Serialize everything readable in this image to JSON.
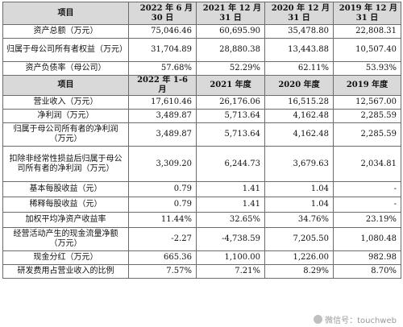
{
  "header1": {
    "item": "项目",
    "cols": [
      {
        "l1": "2022 年 6 月",
        "l2": "30 日"
      },
      {
        "l1": "2021 年 12 月",
        "l2": "31 日"
      },
      {
        "l1": "2020 年 12 月",
        "l2": "31 日"
      },
      {
        "l1": "2019 年 12 月",
        "l2": "31 日"
      }
    ]
  },
  "rows_a": [
    {
      "label": "资产总额（万元）",
      "v": [
        "75,046.46",
        "60,695.90",
        "35,478.80",
        "22,808.31"
      ]
    },
    {
      "label": "归属于母公司所有者权益（万元）",
      "v": [
        "31,704.89",
        "28,880.38",
        "13,443.88",
        "10,507.40"
      ]
    },
    {
      "label": "资产负债率（母公司）",
      "v": [
        "57.68%",
        "52.29%",
        "62.11%",
        "53.93%"
      ]
    }
  ],
  "header2": {
    "item": "项目",
    "cols": [
      "2022 年 1-6 月",
      "2021 年度",
      "2020 年度",
      "2019 年度"
    ]
  },
  "rows_b": [
    {
      "label": "营业收入（万元）",
      "v": [
        "17,610.46",
        "26,176.06",
        "16,515.28",
        "12,567.00"
      ]
    },
    {
      "label": "净利润（万元）",
      "v": [
        "3,489.87",
        "5,713.64",
        "4,162.48",
        "2,285.59"
      ]
    },
    {
      "label": "归属于母公司所有者的净利润（万元）",
      "v": [
        "3,489.87",
        "5,713.64",
        "4,162.48",
        "2,285.59"
      ]
    },
    {
      "label": "扣除非经常性损益后归属于母公司所有者的净利润（万元）",
      "v": [
        "3,309.20",
        "6,244.73",
        "3,679.63",
        "2,034.81"
      ]
    },
    {
      "label": "基本每股收益（元）",
      "v": [
        "0.79",
        "1.41",
        "1.04",
        "-"
      ]
    },
    {
      "label": "稀释每股收益（元）",
      "v": [
        "0.79",
        "1.41",
        "1.04",
        "-"
      ]
    },
    {
      "label": "加权平均净资产收益率",
      "v": [
        "11.44%",
        "32.65%",
        "34.76%",
        "23.19%"
      ]
    },
    {
      "label": "经营活动产生的现金流量净额（万元）",
      "v": [
        "-2.27",
        "-4,738.59",
        "7,205.50",
        "1,080.48"
      ]
    },
    {
      "label": "现金分红（万元）",
      "v": [
        "665.36",
        "1,100.00",
        "1,226.00",
        "982.98"
      ]
    },
    {
      "label": "研发费用占营业收入的比例",
      "v": [
        "7.57%",
        "7.21%",
        "8.29%",
        "8.70%"
      ]
    }
  ],
  "watermark": {
    "text": "微信号：touchweb",
    "icon": "wechat-icon"
  }
}
